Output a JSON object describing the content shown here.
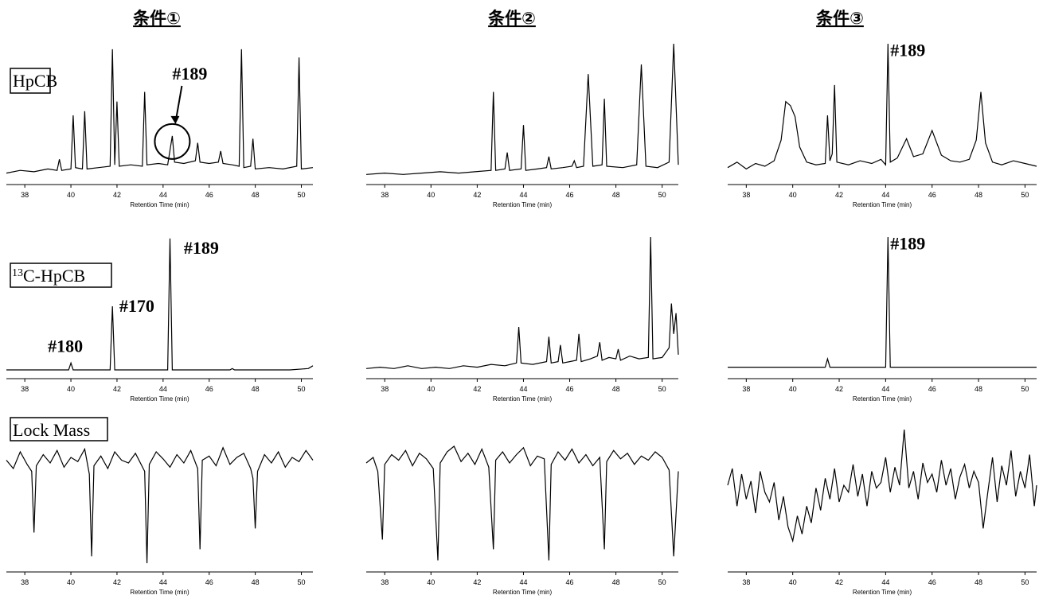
{
  "column_titles": [
    "条件①",
    "条件②",
    "条件③"
  ],
  "row_labels": [
    "HpCB",
    {
      "superscript": "13",
      "text": "C-HpCB"
    },
    "Lock Mass"
  ],
  "chart_data": [
    {
      "type": "line",
      "xlabel": "Retention Time (min)",
      "xlim": [
        37.2,
        50.5
      ],
      "xticks": [
        38,
        40,
        42,
        44,
        46,
        48,
        50
      ],
      "ylim": [
        0,
        100
      ],
      "color": "#000000",
      "x": [
        37.2,
        37.8,
        38.4,
        39.0,
        39.4,
        39.5,
        39.6,
        40.0,
        40.1,
        40.2,
        40.5,
        40.6,
        40.7,
        41.2,
        41.7,
        41.8,
        41.9,
        42.0,
        42.1,
        42.6,
        43.1,
        43.2,
        43.3,
        43.8,
        44.2,
        44.4,
        44.5,
        44.9,
        45.4,
        45.5,
        45.6,
        46.0,
        46.4,
        46.5,
        46.6,
        47.0,
        47.3,
        47.4,
        47.5,
        47.8,
        47.9,
        48.0,
        48.6,
        49.2,
        49.8,
        49.9,
        50.0,
        50.5
      ],
      "values": [
        6,
        8,
        7,
        9,
        8,
        16,
        8,
        9,
        48,
        10,
        9,
        51,
        9,
        10,
        11,
        96,
        12,
        58,
        11,
        12,
        11,
        65,
        12,
        13,
        12,
        33,
        14,
        13,
        15,
        28,
        14,
        13,
        14,
        22,
        13,
        12,
        11,
        96,
        10,
        11,
        31,
        9,
        10,
        9,
        11,
        90,
        9,
        10
      ],
      "annotations": [
        {
          "text": "#189",
          "x": 44.4,
          "y": 74,
          "circle": [
            44.4,
            29
          ]
        }
      ]
    },
    {
      "type": "line",
      "xlabel": "Retention Time (min)",
      "xlim": [
        37.2,
        50.7
      ],
      "xticks": [
        38,
        40,
        42,
        44,
        46,
        48,
        50
      ],
      "ylim": [
        0,
        100
      ],
      "color": "#000000",
      "x": [
        37.2,
        38.0,
        38.8,
        39.6,
        40.4,
        41.2,
        41.9,
        42.6,
        42.7,
        42.8,
        43.2,
        43.3,
        43.4,
        43.9,
        44.0,
        44.1,
        44.6,
        45.0,
        45.1,
        45.2,
        45.7,
        46.1,
        46.2,
        46.3,
        46.6,
        46.8,
        47.0,
        47.4,
        47.5,
        47.6,
        48.3,
        48.9,
        49.1,
        49.3,
        49.8,
        50.3,
        50.5,
        50.7
      ],
      "values": [
        5,
        6,
        5,
        6,
        7,
        6,
        7,
        8,
        65,
        8,
        9,
        21,
        8,
        9,
        41,
        8,
        9,
        10,
        18,
        9,
        10,
        11,
        15,
        10,
        11,
        78,
        11,
        12,
        60,
        11,
        10,
        12,
        85,
        11,
        10,
        14,
        100,
        12
      ],
      "annotations": []
    },
    {
      "type": "line",
      "xlabel": "Retention Time (min)",
      "xlim": [
        37.2,
        50.5
      ],
      "xticks": [
        38,
        40,
        42,
        44,
        46,
        48,
        50
      ],
      "ylim": [
        0,
        100
      ],
      "color": "#000000",
      "x": [
        37.2,
        37.6,
        38.0,
        38.4,
        38.8,
        39.2,
        39.5,
        39.7,
        39.9,
        40.1,
        40.3,
        40.6,
        41.0,
        41.4,
        41.5,
        41.6,
        41.7,
        41.8,
        41.9,
        42.4,
        42.9,
        43.4,
        43.8,
        44.0,
        44.1,
        44.2,
        44.5,
        44.9,
        45.2,
        45.6,
        46.0,
        46.4,
        46.8,
        47.2,
        47.6,
        47.9,
        48.1,
        48.3,
        48.6,
        49.0,
        49.5,
        50.0,
        50.5
      ],
      "values": [
        10,
        14,
        9,
        13,
        11,
        15,
        30,
        58,
        55,
        47,
        25,
        14,
        12,
        13,
        48,
        15,
        20,
        70,
        14,
        12,
        15,
        13,
        16,
        12,
        100,
        14,
        17,
        31,
        18,
        20,
        37,
        19,
        15,
        14,
        16,
        30,
        65,
        28,
        14,
        12,
        15,
        13,
        11
      ],
      "annotations": [
        {
          "text": "#189",
          "x": 44.2,
          "y": 91
        }
      ]
    },
    {
      "type": "line",
      "xlabel": "Retention Time (min)",
      "xlim": [
        37.2,
        50.5
      ],
      "xticks": [
        38,
        40,
        42,
        44,
        46,
        48,
        50
      ],
      "ylim": [
        0,
        100
      ],
      "color": "#000000",
      "x": [
        37.2,
        38.5,
        39.9,
        40.0,
        40.1,
        41.7,
        41.8,
        41.9,
        44.2,
        44.3,
        44.4,
        46.9,
        47.0,
        47.1,
        49.5,
        50.3,
        50.5
      ],
      "values": [
        4,
        4,
        4,
        9,
        4,
        4,
        50,
        4,
        4,
        99,
        4,
        4,
        5,
        4,
        4,
        5,
        7
      ],
      "annotations": [
        {
          "text": "#180",
          "x": 39.0,
          "y": 17
        },
        {
          "text": "#170",
          "x": 42.1,
          "y": 46
        },
        {
          "text": "#189",
          "x": 44.9,
          "y": 88
        }
      ]
    },
    {
      "type": "line",
      "xlabel": "Retention Time (min)",
      "xlim": [
        37.2,
        50.7
      ],
      "xticks": [
        38,
        40,
        42,
        44,
        46,
        48,
        50
      ],
      "ylim": [
        0,
        100
      ],
      "color": "#000000",
      "x": [
        37.2,
        37.8,
        38.4,
        39.0,
        39.6,
        40.2,
        40.8,
        41.4,
        42.0,
        42.6,
        43.2,
        43.7,
        43.8,
        43.9,
        44.4,
        45.0,
        45.1,
        45.2,
        45.5,
        45.6,
        45.7,
        46.0,
        46.3,
        46.4,
        46.5,
        46.9,
        47.2,
        47.3,
        47.4,
        47.7,
        48.0,
        48.1,
        48.2,
        48.6,
        49.0,
        49.4,
        49.5,
        49.6,
        50.0,
        50.3,
        50.4,
        50.5,
        50.6,
        50.7
      ],
      "values": [
        5,
        6,
        5,
        7,
        5,
        6,
        5,
        7,
        6,
        8,
        7,
        9,
        35,
        9,
        8,
        10,
        28,
        9,
        10,
        22,
        9,
        10,
        11,
        30,
        10,
        12,
        14,
        24,
        11,
        13,
        12,
        19,
        11,
        14,
        12,
        13,
        100,
        12,
        13,
        20,
        52,
        30,
        45,
        15
      ],
      "annotations": []
    },
    {
      "type": "line",
      "xlabel": "Retention Time (min)",
      "xlim": [
        37.2,
        50.5
      ],
      "xticks": [
        38,
        40,
        42,
        44,
        46,
        48,
        50
      ],
      "ylim": [
        0,
        100
      ],
      "color": "#000000",
      "x": [
        37.2,
        39.0,
        41.4,
        41.5,
        41.6,
        44.0,
        44.1,
        44.2,
        46.0,
        48.0,
        50.5
      ],
      "values": [
        6,
        6,
        6,
        12,
        6,
        6,
        100,
        6,
        6,
        6,
        6
      ],
      "annotations": [
        {
          "text": "#189",
          "x": 44.2,
          "y": 91
        }
      ]
    },
    {
      "type": "line",
      "xlabel": "Retention Time (min)",
      "xlim": [
        37.2,
        50.5
      ],
      "xticks": [
        38,
        40,
        42,
        44,
        46,
        48,
        50
      ],
      "ylim": [
        0,
        100
      ],
      "color": "#000000",
      "x": [
        37.2,
        37.5,
        37.8,
        38.1,
        38.3,
        38.4,
        38.5,
        38.8,
        39.1,
        39.4,
        39.7,
        40.0,
        40.3,
        40.6,
        40.8,
        40.9,
        41.0,
        41.3,
        41.6,
        41.9,
        42.2,
        42.5,
        42.8,
        43.2,
        43.3,
        43.4,
        43.7,
        44.0,
        44.3,
        44.6,
        44.9,
        45.2,
        45.5,
        45.6,
        45.7,
        46.0,
        46.3,
        46.6,
        46.9,
        47.2,
        47.5,
        47.8,
        47.9,
        48.0,
        48.1,
        48.4,
        48.7,
        49.0,
        49.3,
        49.6,
        49.9,
        50.2,
        50.5
      ],
      "values": [
        78,
        72,
        84,
        75,
        70,
        26,
        74,
        82,
        76,
        85,
        73,
        80,
        77,
        86,
        68,
        9,
        74,
        81,
        72,
        84,
        78,
        76,
        83,
        70,
        4,
        75,
        84,
        79,
        73,
        82,
        76,
        85,
        72,
        14,
        78,
        81,
        74,
        87,
        75,
        80,
        83,
        72,
        65,
        29,
        70,
        82,
        76,
        84,
        73,
        80,
        77,
        85,
        78
      ],
      "annotations": []
    },
    {
      "type": "line",
      "xlabel": "Retention Time (min)",
      "xlim": [
        37.2,
        50.7
      ],
      "xticks": [
        38,
        40,
        42,
        44,
        46,
        48,
        50
      ],
      "ylim": [
        0,
        100
      ],
      "color": "#000000",
      "x": [
        37.2,
        37.5,
        37.7,
        37.9,
        38.0,
        38.3,
        38.6,
        38.9,
        39.2,
        39.5,
        39.8,
        40.1,
        40.3,
        40.4,
        40.7,
        41.0,
        41.3,
        41.6,
        41.9,
        42.2,
        42.5,
        42.7,
        42.8,
        43.1,
        43.4,
        43.7,
        44.0,
        44.3,
        44.6,
        44.9,
        45.1,
        45.2,
        45.5,
        45.8,
        46.1,
        46.4,
        46.7,
        47.0,
        47.3,
        47.5,
        47.6,
        47.9,
        48.2,
        48.5,
        48.8,
        49.1,
        49.4,
        49.7,
        50.0,
        50.3,
        50.5,
        50.7
      ],
      "values": [
        76,
        80,
        70,
        21,
        75,
        82,
        78,
        85,
        74,
        83,
        79,
        72,
        6,
        76,
        84,
        88,
        77,
        83,
        75,
        86,
        73,
        14,
        78,
        84,
        76,
        82,
        87,
        74,
        81,
        79,
        6,
        75,
        84,
        78,
        86,
        76,
        82,
        74,
        80,
        14,
        77,
        85,
        79,
        83,
        75,
        81,
        78,
        84,
        80,
        71,
        9,
        70
      ],
      "annotations": []
    },
    {
      "type": "line",
      "xlabel": "Retention Time (min)",
      "xlim": [
        37.2,
        50.5
      ],
      "xticks": [
        38,
        40,
        42,
        44,
        46,
        48,
        50
      ],
      "ylim": [
        0,
        100
      ],
      "color": "#000000",
      "x": [
        37.2,
        37.4,
        37.6,
        37.8,
        38.0,
        38.2,
        38.4,
        38.6,
        38.8,
        39.0,
        39.2,
        39.4,
        39.6,
        39.8,
        40.0,
        40.2,
        40.4,
        40.6,
        40.8,
        41.0,
        41.2,
        41.4,
        41.6,
        41.8,
        42.0,
        42.2,
        42.4,
        42.6,
        42.8,
        43.0,
        43.2,
        43.4,
        43.6,
        43.8,
        44.0,
        44.2,
        44.4,
        44.6,
        44.8,
        45.0,
        45.2,
        45.4,
        45.6,
        45.8,
        46.0,
        46.2,
        46.4,
        46.6,
        46.8,
        47.0,
        47.2,
        47.4,
        47.6,
        47.8,
        48.0,
        48.2,
        48.4,
        48.6,
        48.8,
        49.0,
        49.2,
        49.4,
        49.6,
        49.8,
        50.0,
        50.2,
        50.4,
        50.5
      ],
      "values": [
        60,
        72,
        45,
        68,
        50,
        63,
        40,
        70,
        55,
        48,
        62,
        35,
        52,
        30,
        20,
        38,
        25,
        45,
        33,
        58,
        42,
        65,
        50,
        72,
        48,
        60,
        55,
        75,
        52,
        68,
        45,
        70,
        58,
        62,
        80,
        55,
        73,
        60,
        100,
        58,
        70,
        50,
        76,
        62,
        68,
        55,
        78,
        60,
        72,
        50,
        66,
        75,
        58,
        70,
        62,
        29,
        55,
        80,
        48,
        74,
        60,
        85,
        52,
        70,
        58,
        82,
        45,
        60
      ],
      "annotations": []
    }
  ]
}
